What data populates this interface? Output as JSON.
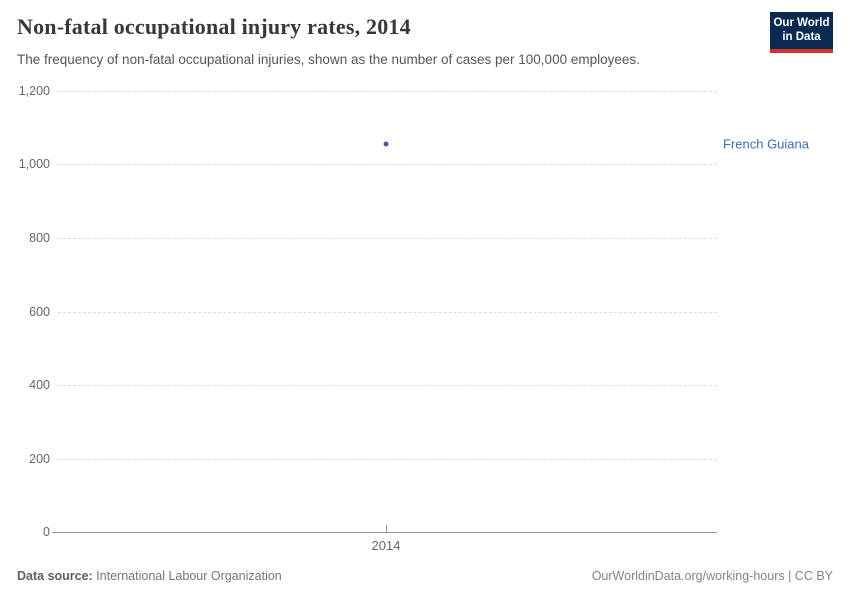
{
  "header": {
    "title": "Non-fatal occupational injury rates, 2014",
    "subtitle": "The frequency of non-fatal occupational injuries, shown as the number of cases per 100,000 employees.",
    "logo_line1": "Our World",
    "logo_line2": "in Data"
  },
  "chart_data": {
    "type": "scatter",
    "title": "Non-fatal occupational injury rates, 2014",
    "xlabel": "",
    "ylabel": "",
    "x": [
      2014
    ],
    "xticks": [
      "2014"
    ],
    "series": [
      {
        "name": "French Guiana",
        "x": [
          2014
        ],
        "y": [
          1056
        ],
        "color": "#3a62a0"
      }
    ],
    "ylim": [
      0,
      1200
    ],
    "yticks": [
      {
        "value": 0,
        "label": "0"
      },
      {
        "value": 200,
        "label": "200"
      },
      {
        "value": 400,
        "label": "400"
      },
      {
        "value": 600,
        "label": "600"
      },
      {
        "value": 800,
        "label": "800"
      },
      {
        "value": 1000,
        "label": "1,000"
      },
      {
        "value": 1200,
        "label": "1,200"
      }
    ],
    "grid": "horizontal-dashed",
    "legend_position": "entity-label-right-of-point"
  },
  "colors": {
    "accent_blue": "#3d6cb0",
    "point_blue": "#3a62a0",
    "gridline": "#dcdcdc",
    "axis": "#9a9a9a",
    "logo_navy": "#0b2a52",
    "logo_red": "#cc342c"
  },
  "footer": {
    "source_label": "Data source:",
    "source_value": " International Labour Organization",
    "link": "OurWorldinData.org/working-hours | CC BY"
  }
}
